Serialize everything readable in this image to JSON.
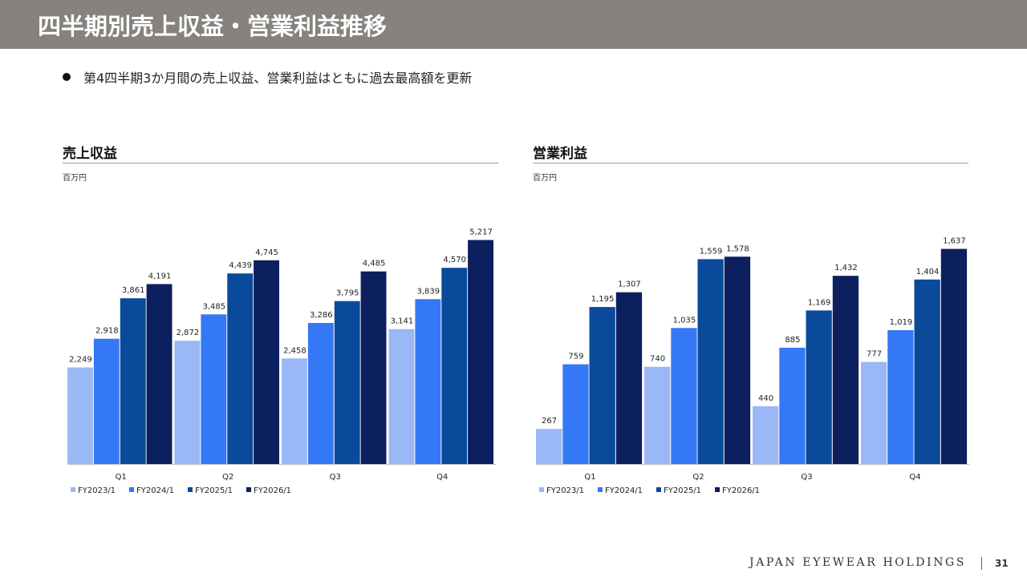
{
  "title": "四半期別売上収益・営業利益推移",
  "bullet": "第4四半期3か月間の売上収益、営業利益はともに過去最高額を更新",
  "footer": {
    "brand": "JAPAN EYEWEAR HOLDINGS",
    "page": "31"
  },
  "colors": {
    "FY2023/1": "#9ab8f5",
    "FY2024/1": "#3478f6",
    "FY2025/1": "#0a4a9a",
    "FY2026/1": "#0c1f5e"
  },
  "chart_data": [
    {
      "type": "bar",
      "title": "売上収益",
      "unit": "百万円",
      "categories": [
        "Q1",
        "Q2",
        "Q3",
        "Q4"
      ],
      "legend_position": "bottom-left",
      "ylim": [
        0,
        5600
      ],
      "series": [
        {
          "name": "FY2023/1",
          "values": [
            2249,
            2872,
            2458,
            3141
          ],
          "labels": [
            "2,249",
            "2,872",
            "2,458",
            "3,141"
          ]
        },
        {
          "name": "FY2024/1",
          "values": [
            2918,
            3485,
            3286,
            3839
          ],
          "labels": [
            "2,918",
            "3,485",
            "3,286",
            "3,839"
          ]
        },
        {
          "name": "FY2025/1",
          "values": [
            3861,
            4439,
            3795,
            4570
          ],
          "labels": [
            "3,861",
            "4,439",
            "3,795",
            "4,570"
          ]
        },
        {
          "name": "FY2026/1",
          "values": [
            4191,
            4745,
            4485,
            5217
          ],
          "labels": [
            "4,191",
            "4,745",
            "4,485",
            "5,217"
          ]
        }
      ]
    },
    {
      "type": "bar",
      "title": "営業利益",
      "unit": "百万円",
      "categories": [
        "Q1",
        "Q2",
        "Q3",
        "Q4"
      ],
      "legend_position": "bottom-left",
      "ylim": [
        0,
        1830
      ],
      "series": [
        {
          "name": "FY2023/1",
          "values": [
            267,
            740,
            440,
            777
          ],
          "labels": [
            "267",
            "740",
            "440",
            "777"
          ]
        },
        {
          "name": "FY2024/1",
          "values": [
            759,
            1035,
            885,
            1019
          ],
          "labels": [
            "759",
            "1,035",
            "885",
            "1,019"
          ]
        },
        {
          "name": "FY2025/1",
          "values": [
            1195,
            1559,
            1169,
            1404
          ],
          "labels": [
            "1,195",
            "1,559",
            "1,169",
            "1,404"
          ]
        },
        {
          "name": "FY2026/1",
          "values": [
            1307,
            1578,
            1432,
            1637
          ],
          "labels": [
            "1,307",
            "1,578",
            "1,432",
            "1,637"
          ]
        }
      ]
    }
  ]
}
